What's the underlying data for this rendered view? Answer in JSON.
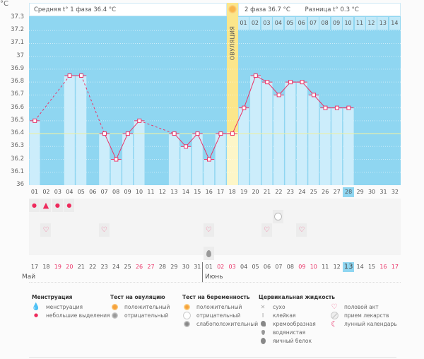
{
  "header": {
    "phase1": "Средняя t° 1 фаза 36.4 °C",
    "phase2": "2 фаза 36.7 °C",
    "diff": "Разница t° 0.3 °C",
    "ovulation_label": "ОВУЛЯЦИЯ"
  },
  "cycle_days_phase2": [
    "01",
    "02",
    "03",
    "04",
    "05",
    "06",
    "07",
    "08",
    "09",
    "10",
    "11",
    "12",
    "13",
    "14"
  ],
  "chart_data": {
    "type": "line",
    "title": "",
    "ylabel": "°C",
    "ylim": [
      36.0,
      37.3
    ],
    "yticks": [
      "37.3",
      "37.2",
      "37.1",
      "37",
      "36.9",
      "36.8",
      "36.7",
      "36.6",
      "36.5",
      "36.4",
      "36.3",
      "36.2",
      "36.1",
      "36"
    ],
    "coverline": 36.4,
    "ovulation_day": 18,
    "today_day": 28,
    "x": [
      "01",
      "02",
      "03",
      "04",
      "05",
      "06",
      "07",
      "08",
      "09",
      "10",
      "11",
      "12",
      "13",
      "14",
      "15",
      "16",
      "17",
      "18",
      "19",
      "20",
      "21",
      "22",
      "23",
      "24",
      "25",
      "26",
      "27",
      "28",
      "29",
      "30",
      "31",
      "32"
    ],
    "series": [
      {
        "name": "Базальная температура",
        "values": [
          36.5,
          null,
          null,
          36.85,
          36.85,
          null,
          36.4,
          36.2,
          36.4,
          36.5,
          null,
          null,
          36.4,
          36.3,
          36.4,
          36.2,
          36.4,
          36.4,
          36.6,
          36.85,
          36.8,
          36.7,
          36.8,
          36.8,
          36.7,
          36.6,
          36.6,
          36.6,
          null,
          null,
          null,
          null
        ]
      }
    ]
  },
  "markers": {
    "menstruation_heavy_days": [
      2
    ],
    "menstruation_light_days": [
      1,
      3,
      4
    ],
    "ovulation_test_negative_days": [
      22
    ],
    "intercourse_days": [
      2,
      7,
      16,
      21,
      24
    ],
    "egg_white_days": [
      16
    ]
  },
  "calendar": {
    "dates": [
      "17",
      "18",
      "19",
      "20",
      "21",
      "22",
      "23",
      "24",
      "25",
      "26",
      "27",
      "28",
      "29",
      "30",
      "31",
      "01",
      "02",
      "03",
      "04",
      "05",
      "06",
      "07",
      "08",
      "09",
      "10",
      "11",
      "12",
      "13",
      "14",
      "15",
      "16",
      "17"
    ],
    "weekend_indices": [
      2,
      3,
      9,
      10,
      16,
      17,
      23,
      24,
      30,
      31
    ],
    "today_index": 27,
    "months": [
      "Май",
      "Июнь"
    ]
  },
  "legend": {
    "menstruation": {
      "title": "Менструация",
      "items": [
        "менструация",
        "небольшие выделения"
      ]
    },
    "ovulation_test": {
      "title": "Тест на овуляцию",
      "items": [
        "положительный",
        "отрицательный"
      ]
    },
    "pregnancy_test": {
      "title": "Тест на беременность",
      "items": [
        "положительный",
        "отрицательный",
        "слабоположительный"
      ]
    },
    "cervical_fluid": {
      "title": "Цервикальная жидкость",
      "items": [
        "сухо",
        "клейкая",
        "кремообразная",
        "водянистая",
        "яичный белок"
      ]
    },
    "other": {
      "items": [
        "половой акт",
        "прием лекарств",
        "лунный календарь"
      ]
    }
  },
  "colors": {
    "plot_bg": "#8fd6f1",
    "bar": "#ccedfb",
    "line": "#ea3468",
    "coverline": "#eaf0a6",
    "ovulation": "#fbe68b",
    "weekend": "#ea3468"
  }
}
